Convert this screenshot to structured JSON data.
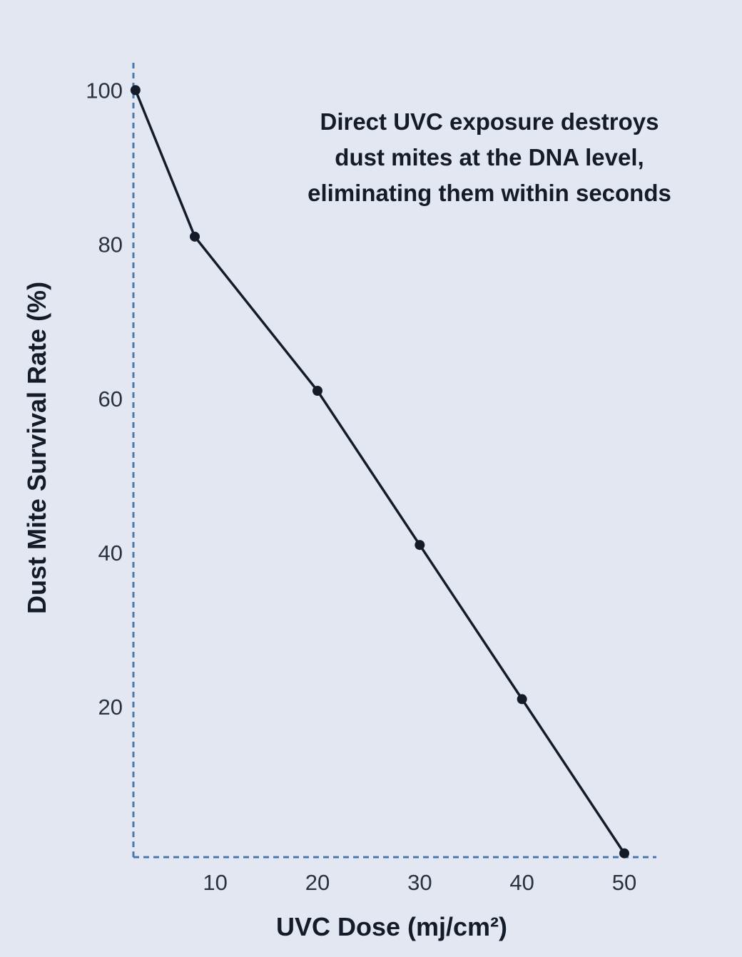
{
  "chart_data": {
    "type": "line",
    "xlabel": "UVC Dose (mj/cm²)",
    "ylabel": "Dust Mite Survival Rate (%)",
    "x_ticks": [
      10,
      20,
      30,
      40,
      50
    ],
    "y_ticks": [
      20,
      40,
      60,
      80,
      100
    ],
    "xlim": [
      2,
      53
    ],
    "ylim": [
      0.5,
      103
    ],
    "grid": false,
    "series": [
      {
        "x": [
          2.2,
          8,
          20,
          30,
          40,
          50
        ],
        "y": [
          100,
          81,
          61,
          41,
          21,
          1
        ]
      }
    ],
    "annotation": [
      "Direct UVC exposure destroys",
      "dust mites at the DNA level,",
      "eliminating them within seconds"
    ],
    "colors": {
      "background": "#e3e7f2",
      "axis": "#4a78ad",
      "line": "#141c2a",
      "text": "#141c2a"
    }
  }
}
